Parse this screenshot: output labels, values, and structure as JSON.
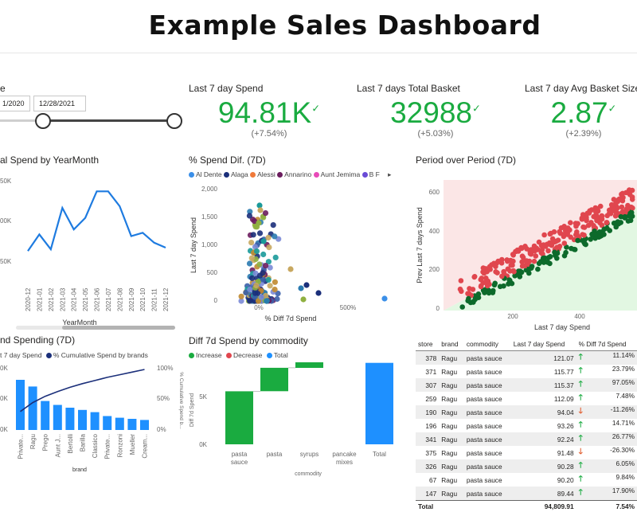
{
  "dashboard": {
    "title": "Example Sales Dashboard"
  },
  "date_slicer": {
    "label": "e",
    "start": "1/2020",
    "end": "12/28/2021"
  },
  "kpis": [
    {
      "label": "Last 7 day Spend",
      "value": "94.81K",
      "delta": "(+7.54%)",
      "check": "✓"
    },
    {
      "label": "Last 7 days Total Basket",
      "value": "32988",
      "delta": "(+5.03%)",
      "check": "✓"
    },
    {
      "label": "Last 7 day Avg Basket Size",
      "value": "2.87",
      "delta": "(+2.39%)",
      "check": "✓"
    }
  ],
  "spend_by_month": {
    "title": "al Spend by YearMonth",
    "xlabel": "YearMonth",
    "yticks": [
      "50K",
      "00K",
      "50K"
    ]
  },
  "spend_dif": {
    "title": "% Spend Dif. (7D)",
    "legend": [
      "Al Dente",
      "Alaga",
      "Alessi",
      "Annarino",
      "Aunt Jemima",
      "B F"
    ],
    "legend_colors": [
      "#3b8fe8",
      "#1b2f7a",
      "#f07a3a",
      "#6b1d5e",
      "#e84ab8",
      "#6a4bd6"
    ],
    "xlabel": "% Diff 7d Spend",
    "ylabel": "Last 7 day Spend",
    "yticks": [
      "2,000",
      "1,500",
      "1,000",
      "500",
      "0"
    ],
    "xticks": [
      "0%",
      "500%"
    ]
  },
  "period_over_period": {
    "title": "Period over Period (7D)",
    "xlabel": "Last 7 day Spend",
    "ylabel": "Prev Last 7 days Spend",
    "yticks": [
      "600",
      "400",
      "200",
      "0"
    ],
    "xticks": [
      "200",
      "400"
    ]
  },
  "brand_spending": {
    "title": "nd Spending (7D)",
    "legend_a": "t 7 day Spend",
    "legend_b": "% Cumulative Spend by brands",
    "xlabel": "brand",
    "y2label": "% Cumulative Spend b...",
    "yticks_left": [
      "0K",
      "0K",
      "0K"
    ],
    "yticks_right": [
      "100%",
      "50%",
      "0%"
    ],
    "brands": [
      "Private...",
      "Ragu",
      "Prego",
      "Aunt J...",
      "Bertolli",
      "Barilla",
      "Classico",
      "Private...",
      "Ronzoni",
      "Mueller",
      "Cream..."
    ]
  },
  "commodity_diff": {
    "title": "Diff 7d Spend by commodity",
    "legend": [
      "Increase",
      "Decrease",
      "Total"
    ],
    "legend_colors": [
      "#1aab40",
      "#e0464e",
      "#1e90ff"
    ],
    "xlabel": "commodity",
    "ylabel": "Diff 7d Spend",
    "yticks": [
      "5K",
      "0K"
    ],
    "categories": [
      "pasta sauce",
      "pasta",
      "syrups",
      "pancake mixes",
      "Total"
    ]
  },
  "store_table": {
    "headers": [
      "store",
      "brand",
      "commodity",
      "Last 7 day Spend",
      "% Diff 7d Spend"
    ],
    "rows": [
      [
        "378",
        "Ragu",
        "pasta sauce",
        "121.07",
        "up",
        "11.14%"
      ],
      [
        "371",
        "Ragu",
        "pasta sauce",
        "115.77",
        "up",
        "23.79%"
      ],
      [
        "307",
        "Ragu",
        "pasta sauce",
        "115.37",
        "up",
        "97.05%"
      ],
      [
        "259",
        "Ragu",
        "pasta sauce",
        "112.09",
        "up",
        "7.48%"
      ],
      [
        "190",
        "Ragu",
        "pasta sauce",
        "94.04",
        "down",
        "-11.26%"
      ],
      [
        "196",
        "Ragu",
        "pasta sauce",
        "93.26",
        "up",
        "14.71%"
      ],
      [
        "341",
        "Ragu",
        "pasta sauce",
        "92.24",
        "up",
        "26.77%"
      ],
      [
        "375",
        "Ragu",
        "pasta sauce",
        "91.48",
        "down",
        "-26.30%"
      ],
      [
        "326",
        "Ragu",
        "pasta sauce",
        "90.28",
        "up",
        "6.05%"
      ],
      [
        "67",
        "Ragu",
        "pasta sauce",
        "90.20",
        "up",
        "9.84%"
      ],
      [
        "147",
        "Ragu",
        "pasta sauce",
        "89.44",
        "up",
        "17.90%"
      ]
    ],
    "total_label": "Total",
    "total_spend": "94,809.91",
    "total_diff": "7.54%"
  },
  "chart_data": [
    {
      "type": "line",
      "x": [
        "2020-12",
        "2021-01",
        "2021-02",
        "2021-03",
        "2021-04",
        "2021-05",
        "2021-06",
        "2021-07",
        "2021-08",
        "2021-09",
        "2021-10",
        "2021-11",
        "2021-12"
      ],
      "values": [
        1.0,
        2.0,
        1.1,
        3.6,
        2.3,
        3.0,
        4.6,
        4.6,
        3.7,
        1.9,
        2.1,
        1.5,
        1.2
      ],
      "series": [
        {
          "values": [
            1.0,
            2.0,
            1.1,
            3.6,
            2.3,
            3.0,
            4.6,
            4.6,
            3.7,
            1.9,
            2.1,
            1.5,
            1.2
          ]
        }
      ]
    },
    {
      "type": "bar",
      "categories": [
        "Private...",
        "Ragu",
        "Prego",
        "Aunt J...",
        "Bertolli",
        "Barilla",
        "Classico",
        "Private...",
        "Ronzoni",
        "Mueller",
        "Cream..."
      ],
      "series": [
        {
          "name": "t 7 day Spend",
          "values": [
            90,
            78,
            52,
            45,
            40,
            36,
            32,
            25,
            22,
            20,
            18
          ]
        },
        {
          "name": "% Cumulative Spend by brands",
          "values": [
            20,
            37,
            49,
            58,
            66,
            73,
            79,
            85,
            90,
            95,
            100
          ]
        }
      ]
    },
    {
      "type": "bar",
      "categories": [
        "pasta sauce",
        "pasta",
        "syrups",
        "pancake mixes",
        "Total"
      ],
      "series": [
        {
          "values": [
            4.3,
            1.9,
            0.5,
            0.1,
            6.6
          ]
        }
      ],
      "ylabel": "Diff 7d Spend"
    }
  ]
}
